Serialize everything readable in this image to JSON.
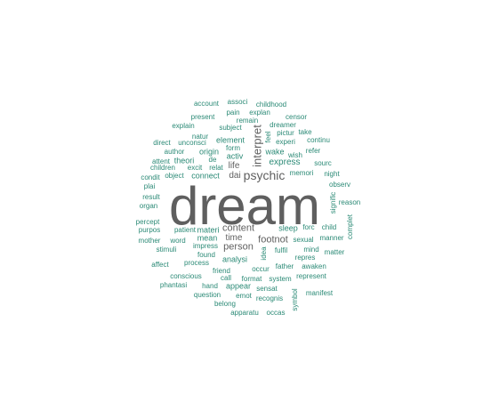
{
  "colors": {
    "primary": "#5f5f5f",
    "secondary": "#2b8a76",
    "background": "#ffffff"
  },
  "words": [
    "dream",
    "psychic",
    "interpret",
    "content",
    "person",
    "time",
    "footnot",
    "life",
    "dai",
    "account",
    "associ",
    "childhood",
    "pain",
    "explan",
    "present",
    "censor",
    "remain",
    "explain",
    "subject",
    "dreamer",
    "natur",
    "feel",
    "pictur",
    "take",
    "direct",
    "unconsci",
    "element",
    "experi",
    "continu",
    "author",
    "origin",
    "form",
    "wake",
    "refer",
    "wish",
    "attent",
    "theori",
    "de",
    "activ",
    "children",
    "excit",
    "relat",
    "express",
    "sourc",
    "condit",
    "object",
    "connect",
    "memori",
    "night",
    "plai",
    "observ",
    "result",
    "signific",
    "reason",
    "organ",
    "percept",
    "complet",
    "purpos",
    "patient",
    "materi",
    "sleep",
    "forc",
    "child",
    "mother",
    "word",
    "mean",
    "sexual",
    "manner",
    "stimuli",
    "impress",
    "fulfil",
    "idea",
    "mind",
    "matter",
    "found",
    "repres",
    "analysi",
    "affect",
    "process",
    "occur",
    "father",
    "awaken",
    "friend",
    "conscious",
    "call",
    "format",
    "system",
    "represent",
    "phantasi",
    "hand",
    "appear",
    "sensat",
    "question",
    "emot",
    "recognis",
    "manifest",
    "belong",
    "symbol",
    "apparatu",
    "occas"
  ]
}
